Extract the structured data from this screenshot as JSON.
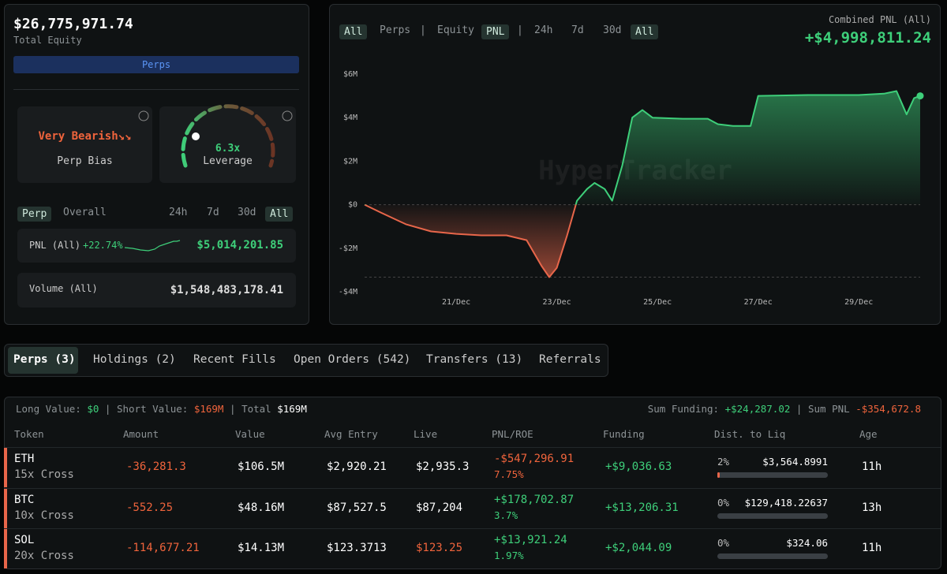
{
  "summary": {
    "equity": "$26,775,971.74",
    "equity_label": "Total Equity",
    "tab": "Perps",
    "bias": {
      "value": "Very Bearish↘↘",
      "label": "Perp Bias"
    },
    "leverage": {
      "value": "6.3x",
      "label": "Leverage"
    },
    "filters": [
      "Perp",
      "Overall",
      "24h",
      "7d",
      "30d",
      "All"
    ],
    "pnl": {
      "label": "PNL (All)",
      "change": "+22.74%",
      "value": "$5,014,201.85"
    },
    "volume": {
      "label": "Volume (All)",
      "value": "$1,548,483,178.41"
    }
  },
  "chart_data": {
    "type": "area",
    "toolbar": [
      "All",
      "Perps",
      "|",
      "Equity",
      "PNL",
      "|",
      "24h",
      "7d",
      "30d",
      "All"
    ],
    "title": "Combined PNL (All)",
    "total": "+$4,998,811.24",
    "watermark": "HyperTracker",
    "positive_color": "#3ecf7a",
    "negative_color": "#e8664a",
    "x": [
      19.18,
      19.5,
      20.0,
      20.5,
      21.0,
      21.5,
      22.0,
      22.4,
      22.7,
      22.85,
      23.0,
      23.2,
      23.4,
      23.6,
      23.75,
      23.95,
      24.1,
      24.3,
      24.5,
      24.7,
      24.9,
      25.5,
      26.0,
      26.2,
      26.5,
      26.85,
      27.0,
      28.0,
      29.0,
      29.5,
      29.75,
      29.95,
      30.1,
      30.22
    ],
    "values": [
      0,
      -360000,
      -900000,
      -1230000,
      -1340000,
      -1410000,
      -1410000,
      -1630000,
      -2830000,
      -3330000,
      -2900000,
      -1450000,
      180000,
      720000,
      1000000,
      720000,
      180000,
      1800000,
      4000000,
      4350000,
      4000000,
      3950000,
      3950000,
      3700000,
      3620000,
      3620000,
      5000000,
      5040000,
      5040000,
      5100000,
      5220000,
      4150000,
      4900000,
      5000000
    ],
    "xlim": [
      19.18,
      30.22
    ],
    "xticks": [
      {
        "value": 21,
        "label": "21/Dec"
      },
      {
        "value": 23,
        "label": "23/Dec"
      },
      {
        "value": 25,
        "label": "25/Dec"
      },
      {
        "value": 27,
        "label": "27/Dec"
      },
      {
        "value": 29,
        "label": "29/Dec"
      }
    ],
    "ylim": [
      -4000000,
      6000000
    ],
    "yticks": [
      {
        "value": -4000000,
        "label": "-$4M"
      },
      {
        "value": -2000000,
        "label": "-$2M"
      },
      {
        "value": 0,
        "label": "$0"
      },
      {
        "value": 2000000,
        "label": "$2M"
      },
      {
        "value": 4000000,
        "label": "$4M"
      },
      {
        "value": 6000000,
        "label": "$6M"
      }
    ]
  },
  "tabs": [
    "Perps (3)",
    "Holdings (2)",
    "Recent Fills",
    "Open Orders (542)",
    "Transfers (13)",
    "Referrals"
  ],
  "stats": {
    "long_label": "Long Value:",
    "long": "$0",
    "short_label": "Short Value:",
    "short": "$169M",
    "total_label": "Total",
    "total": "$169M",
    "funding_label": "Sum Funding:",
    "funding": "+$24,287.02",
    "pnl_label": "Sum PNL",
    "pnl": "-$354,672.8"
  },
  "table": {
    "columns": [
      "Token",
      "Amount",
      "Value",
      "Avg Entry",
      "Live",
      "PNL/ROE",
      "Funding",
      "Dist. to Liq",
      "Age"
    ],
    "rows": [
      {
        "token": "ETH",
        "leverage": "15x Cross",
        "amount": "-36,281.3",
        "value": "$106.5M",
        "avg_entry": "$2,920.21",
        "live": "$2,935.3",
        "live_color": "#ffffff",
        "pnl": "-$547,296.91",
        "roe": "7.75%",
        "funding": "+$9,036.63",
        "liq_pct": "2%",
        "liq_price": "$3,564.8991",
        "age": "11h"
      },
      {
        "token": "BTC",
        "leverage": "10x Cross",
        "amount": "-552.25",
        "value": "$48.16M",
        "avg_entry": "$87,527.5",
        "live": "$87,204",
        "live_color": "#ffffff",
        "pnl": "+$178,702.87",
        "roe": "3.7%",
        "funding": "+$13,206.31",
        "liq_pct": "0%",
        "liq_price": "$129,418.22637",
        "age": "13h"
      },
      {
        "token": "SOL",
        "leverage": "20x Cross",
        "amount": "-114,677.21",
        "value": "$14.13M",
        "avg_entry": "$123.3713",
        "live": "$123.25",
        "live_color": "#f0643c",
        "pnl": "+$13,921.24",
        "roe": "1.97%",
        "funding": "+$2,044.09",
        "liq_pct": "0%",
        "liq_price": "$324.06",
        "age": "11h"
      }
    ]
  }
}
